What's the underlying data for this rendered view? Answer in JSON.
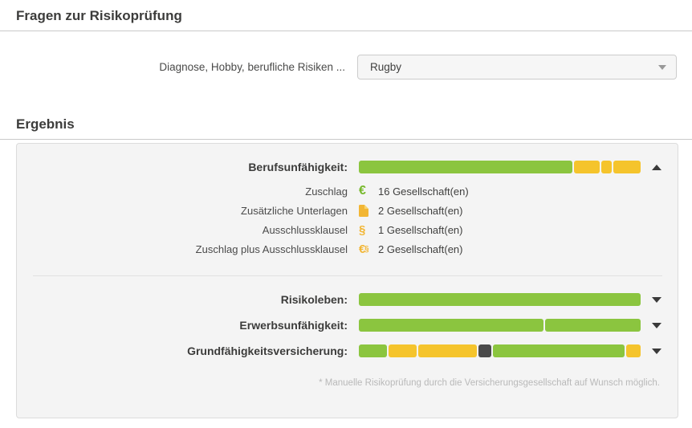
{
  "colors": {
    "green": "#8bc53f",
    "yellow": "#f5c42c",
    "dark": "#4a4a4a"
  },
  "section_risk": {
    "title": "Fragen zur Risikoprüfung"
  },
  "form": {
    "label": "Diagnose, Hobby, berufliche Risiken ...",
    "value": "Rugby"
  },
  "section_result": {
    "title": "Ergebnis"
  },
  "result": {
    "rows": [
      {
        "label": "Berufsunfähigkeit:",
        "state": "expanded",
        "segments": [
          {
            "color": "green",
            "pct": 75.8
          },
          {
            "color": "yellow",
            "pct": 9.3
          },
          {
            "color": "yellow",
            "pct": 3.7
          },
          {
            "color": "yellow",
            "pct": 9.6
          }
        ]
      },
      {
        "label": "Risikoleben:",
        "state": "collapsed",
        "segments": [
          {
            "color": "green",
            "pct": 100
          }
        ]
      },
      {
        "label": "Erwerbsunfähigkeit:",
        "state": "collapsed",
        "segments": [
          {
            "color": "green",
            "pct": 66
          },
          {
            "color": "green",
            "pct": 34
          }
        ]
      },
      {
        "label": "Grundfähigkeitsversicherung:",
        "state": "collapsed",
        "segments": [
          {
            "color": "green",
            "pct": 10.1
          },
          {
            "color": "yellow",
            "pct": 10.1
          },
          {
            "color": "yellow",
            "pct": 20.8
          },
          {
            "color": "dark",
            "pct": 4.8
          },
          {
            "color": "green",
            "pct": 47.1
          },
          {
            "color": "yellow",
            "pct": 5.1
          }
        ]
      }
    ],
    "details": [
      {
        "label": "Zuschlag",
        "icon": "euro-icon",
        "icon_color": "green",
        "count": "16 Gesellschaft(en)"
      },
      {
        "label": "Zusätzliche Unterlagen",
        "icon": "document-icon",
        "icon_color": "yellow",
        "count": "2 Gesellschaft(en)"
      },
      {
        "label": "Ausschlussklausel",
        "icon": "section-icon",
        "icon_color": "yellow",
        "count": "1 Gesellschaft(en)"
      },
      {
        "label": "Zuschlag plus Ausschlussklausel",
        "icon": "euro-section-icon",
        "icon_color": "yellow",
        "count": "2 Gesellschaft(en)"
      }
    ],
    "footnote": "* Manuelle Risikoprüfung durch die Versicherungsgesellschaft auf Wunsch möglich."
  }
}
